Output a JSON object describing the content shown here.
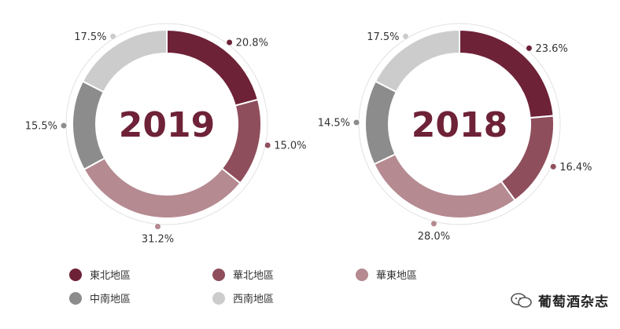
{
  "chart_data": [
    {
      "type": "donut",
      "title": "2019",
      "categories": [
        "東北地區",
        "華北地區",
        "華東地區",
        "中南地區",
        "西南地區"
      ],
      "values": [
        20.8,
        15.0,
        31.2,
        15.5,
        17.5
      ],
      "labels": [
        "20.8%",
        "15.0%",
        "31.2%",
        "15.5%",
        "17.5%"
      ]
    },
    {
      "type": "donut",
      "title": "2018",
      "categories": [
        "東北地區",
        "華北地區",
        "華東地區",
        "中南地區",
        "西南地區"
      ],
      "values": [
        23.6,
        16.4,
        28.0,
        14.5,
        17.5
      ],
      "labels": [
        "23.6%",
        "16.4%",
        "28.0%",
        "14.5%",
        "17.5%"
      ]
    }
  ],
  "colors": [
    "#6e2237",
    "#8f4e5c",
    "#b58a91",
    "#8c8c8c",
    "#cccccc"
  ],
  "center_text_color": "#6e2237",
  "legend": {
    "items": [
      {
        "label": "東北地區",
        "color": "#6e2237"
      },
      {
        "label": "華北地區",
        "color": "#8f4e5c"
      },
      {
        "label": "華東地區",
        "color": "#b58a91"
      },
      {
        "label": "中南地區",
        "color": "#8c8c8c"
      },
      {
        "label": "西南地區",
        "color": "#cccccc"
      }
    ]
  },
  "watermark": {
    "text": "葡萄酒杂志",
    "icon": "wechat-icon"
  }
}
